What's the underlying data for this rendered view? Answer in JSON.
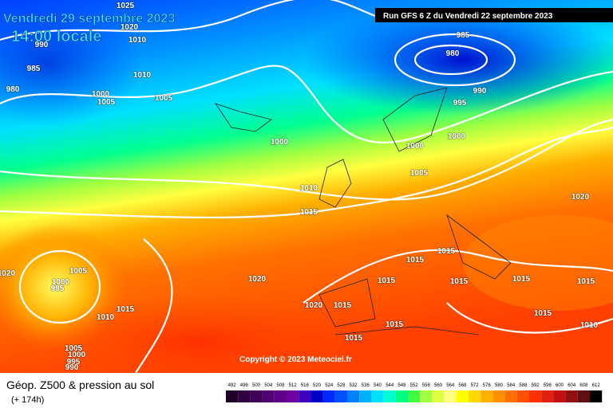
{
  "header": {
    "date": "Vendredi 29 septembre 2023",
    "time": "14:00 locale",
    "run": "Run GFS 6 Z du Vendredi 22 septembre 2023"
  },
  "copyright": "Copyright © 2023 Meteociel.fr",
  "footer": {
    "title": "Géop. Z500 & pression au sol",
    "lead": "(+ 174h)"
  },
  "isobar_labels": [
    "1025",
    "1020",
    "1010",
    "990",
    "985",
    "980",
    "1010",
    "1000",
    "1005",
    "1005",
    "985",
    "980",
    "990",
    "995",
    "1000",
    "1000",
    "1000",
    "1005",
    "1010",
    "1015",
    "1020",
    "1020",
    "1005",
    "1000",
    "995",
    "1015",
    "1015",
    "1020",
    "1015",
    "1015",
    "1015",
    "1015",
    "1015",
    "1010",
    "1020",
    "1015",
    "1015",
    "1015",
    "1015",
    "1010",
    "1005",
    "1000",
    "995",
    "990"
  ],
  "scale": [
    {
      "label": 492,
      "color": "#200028"
    },
    {
      "label": 496,
      "color": "#300040"
    },
    {
      "label": 500,
      "color": "#400058"
    },
    {
      "label": 504,
      "color": "#500070"
    },
    {
      "label": 508,
      "color": "#600088"
    },
    {
      "label": 512,
      "color": "#7000a0"
    },
    {
      "label": 516,
      "color": "#4000c0"
    },
    {
      "label": 520,
      "color": "#0000c8"
    },
    {
      "label": 524,
      "color": "#0028ff"
    },
    {
      "label": 528,
      "color": "#0050ff"
    },
    {
      "label": 532,
      "color": "#0080ff"
    },
    {
      "label": 536,
      "color": "#00b0ff"
    },
    {
      "label": 540,
      "color": "#00e0ff"
    },
    {
      "label": 544,
      "color": "#00ffd0"
    },
    {
      "label": 548,
      "color": "#00ff80"
    },
    {
      "label": 552,
      "color": "#40ff40"
    },
    {
      "label": 556,
      "color": "#a0ff40"
    },
    {
      "label": 560,
      "color": "#e0ff40"
    },
    {
      "label": 564,
      "color": "#ffff80"
    },
    {
      "label": 568,
      "color": "#ffff00"
    },
    {
      "label": 572,
      "color": "#ffd800"
    },
    {
      "label": 576,
      "color": "#ffb000"
    },
    {
      "label": 580,
      "color": "#ff9000"
    },
    {
      "label": 584,
      "color": "#ff7000"
    },
    {
      "label": 588,
      "color": "#ff5000"
    },
    {
      "label": 592,
      "color": "#ff3000"
    },
    {
      "label": 596,
      "color": "#e02010"
    },
    {
      "label": 600,
      "color": "#c01010"
    },
    {
      "label": 604,
      "color": "#901010"
    },
    {
      "label": 608,
      "color": "#601010"
    },
    {
      "label": 612,
      "color": "#000000"
    }
  ]
}
